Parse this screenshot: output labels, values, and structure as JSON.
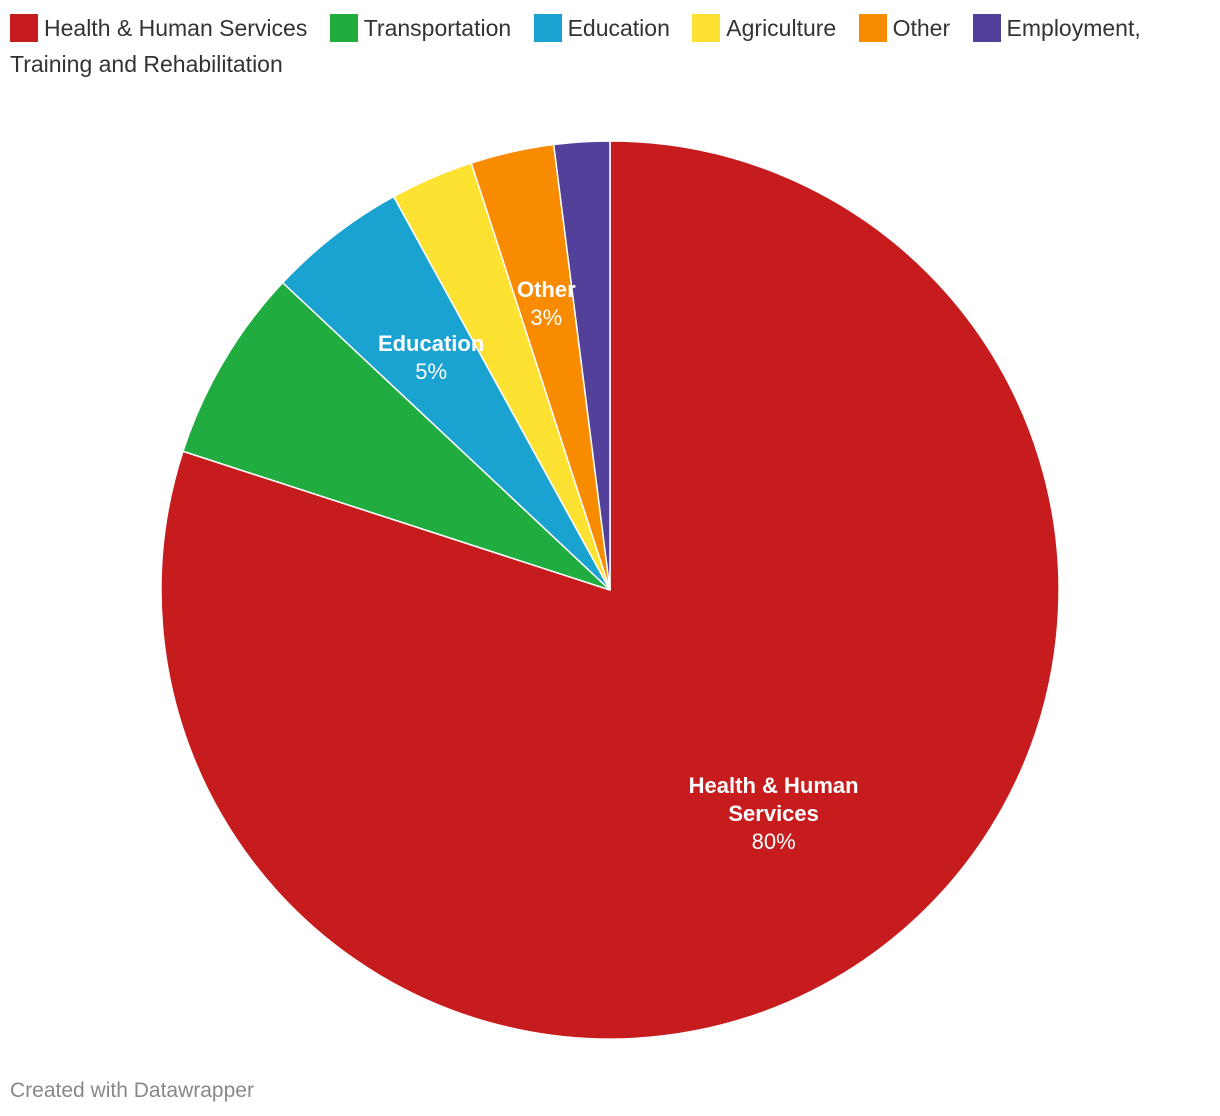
{
  "chart_data": {
    "type": "pie",
    "slices": [
      {
        "name": "Health & Human Services",
        "value": 80,
        "color": "#c71c1e",
        "label_lines": [
          "Health & Human",
          "Services"
        ],
        "value_label": "80%"
      },
      {
        "name": "Transportation",
        "value": 7,
        "color": "#21ac40",
        "label_lines": [],
        "value_label": ""
      },
      {
        "name": "Education",
        "value": 5,
        "color": "#1aa3d0",
        "label_lines": [
          "Education"
        ],
        "value_label": "5%"
      },
      {
        "name": "Agriculture",
        "value": 3,
        "color": "#fde232",
        "label_lines": [],
        "value_label": ""
      },
      {
        "name": "Other",
        "value": 3,
        "color": "#f98b00",
        "label_lines": [
          "Other"
        ],
        "value_label": "3%"
      },
      {
        "name": "Employment, Training and Rehabilitation",
        "value": 2,
        "color": "#52409a",
        "label_lines": [],
        "value_label": ""
      }
    ],
    "start_angle": "12 o'clock",
    "direction": "clockwise",
    "legend_position": "top-left"
  },
  "credit": "Created with Datawrapper"
}
